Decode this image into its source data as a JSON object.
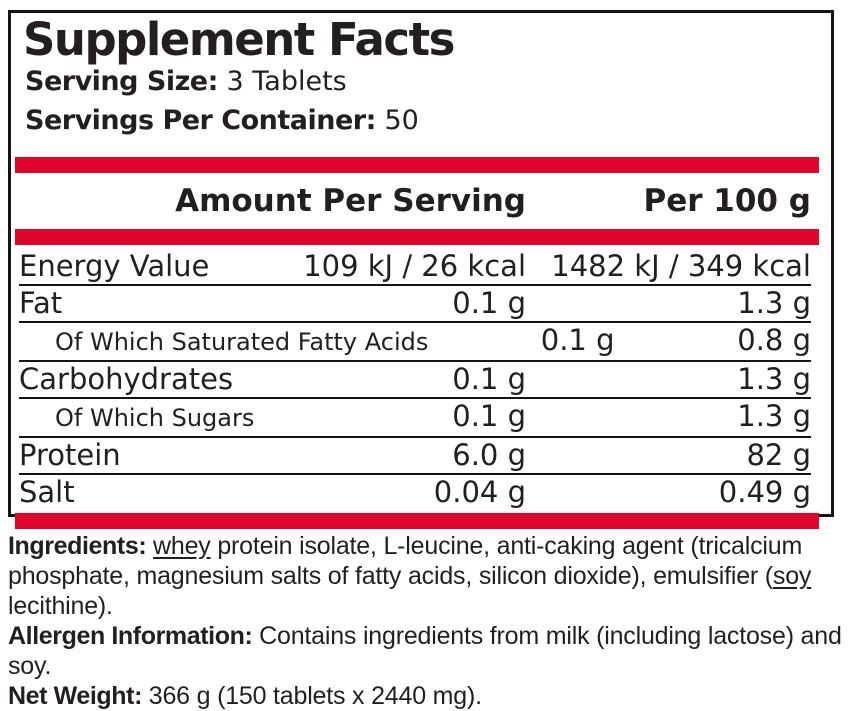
{
  "colors": {
    "accent_red": "#e0062b",
    "text": "#231f20"
  },
  "header": {
    "title": "Supplement Facts",
    "serving_size_label": "Serving Size:",
    "serving_size_value": " 3 Tablets",
    "servings_per_container_label": "Servings Per Container:",
    "servings_per_container_value": " 50"
  },
  "table": {
    "amount_header": "Amount Per Serving",
    "per100_header": "Per 100 g",
    "rows": [
      {
        "label": "Energy Value",
        "amount": "109 kJ / 26 kcal",
        "per100": "1482 kJ / 349 kcal"
      },
      {
        "label": "Fat",
        "amount": "0.1 g",
        "per100": "1.3 g"
      },
      {
        "label": "Of Which Saturated Fatty Acids",
        "amount": "0.1 g",
        "per100": "0.8 g"
      },
      {
        "label": "Carbohydrates",
        "amount": "0.1 g",
        "per100": "1.3 g"
      },
      {
        "label": "Of Which Sugars",
        "amount": "0.1 g",
        "per100": "1.3 g"
      },
      {
        "label": "Protein",
        "amount": "6.0 g",
        "per100": "82 g"
      },
      {
        "label": "Salt",
        "amount": "0.04 g",
        "per100": "0.49 g"
      }
    ]
  },
  "footer": {
    "ingredients_label": "Ingredients:",
    "ingredients_underline1": "whey",
    "ingredients_middle": " protein isolate, L-leucine, anti-caking agent (tricalcium phosphate, magnesium salts of fatty acids, silicon dioxide), emulsifier (",
    "ingredients_underline2": "soy",
    "ingredients_end": " lecithine).",
    "allergen_label": "Allergen Information:",
    "allergen_text": " Contains ingredients from milk (including lactose) and soy.",
    "net_weight_label": "Net Weight:",
    "net_weight_text": " 366 g (150 tablets x 2440 mg)."
  }
}
